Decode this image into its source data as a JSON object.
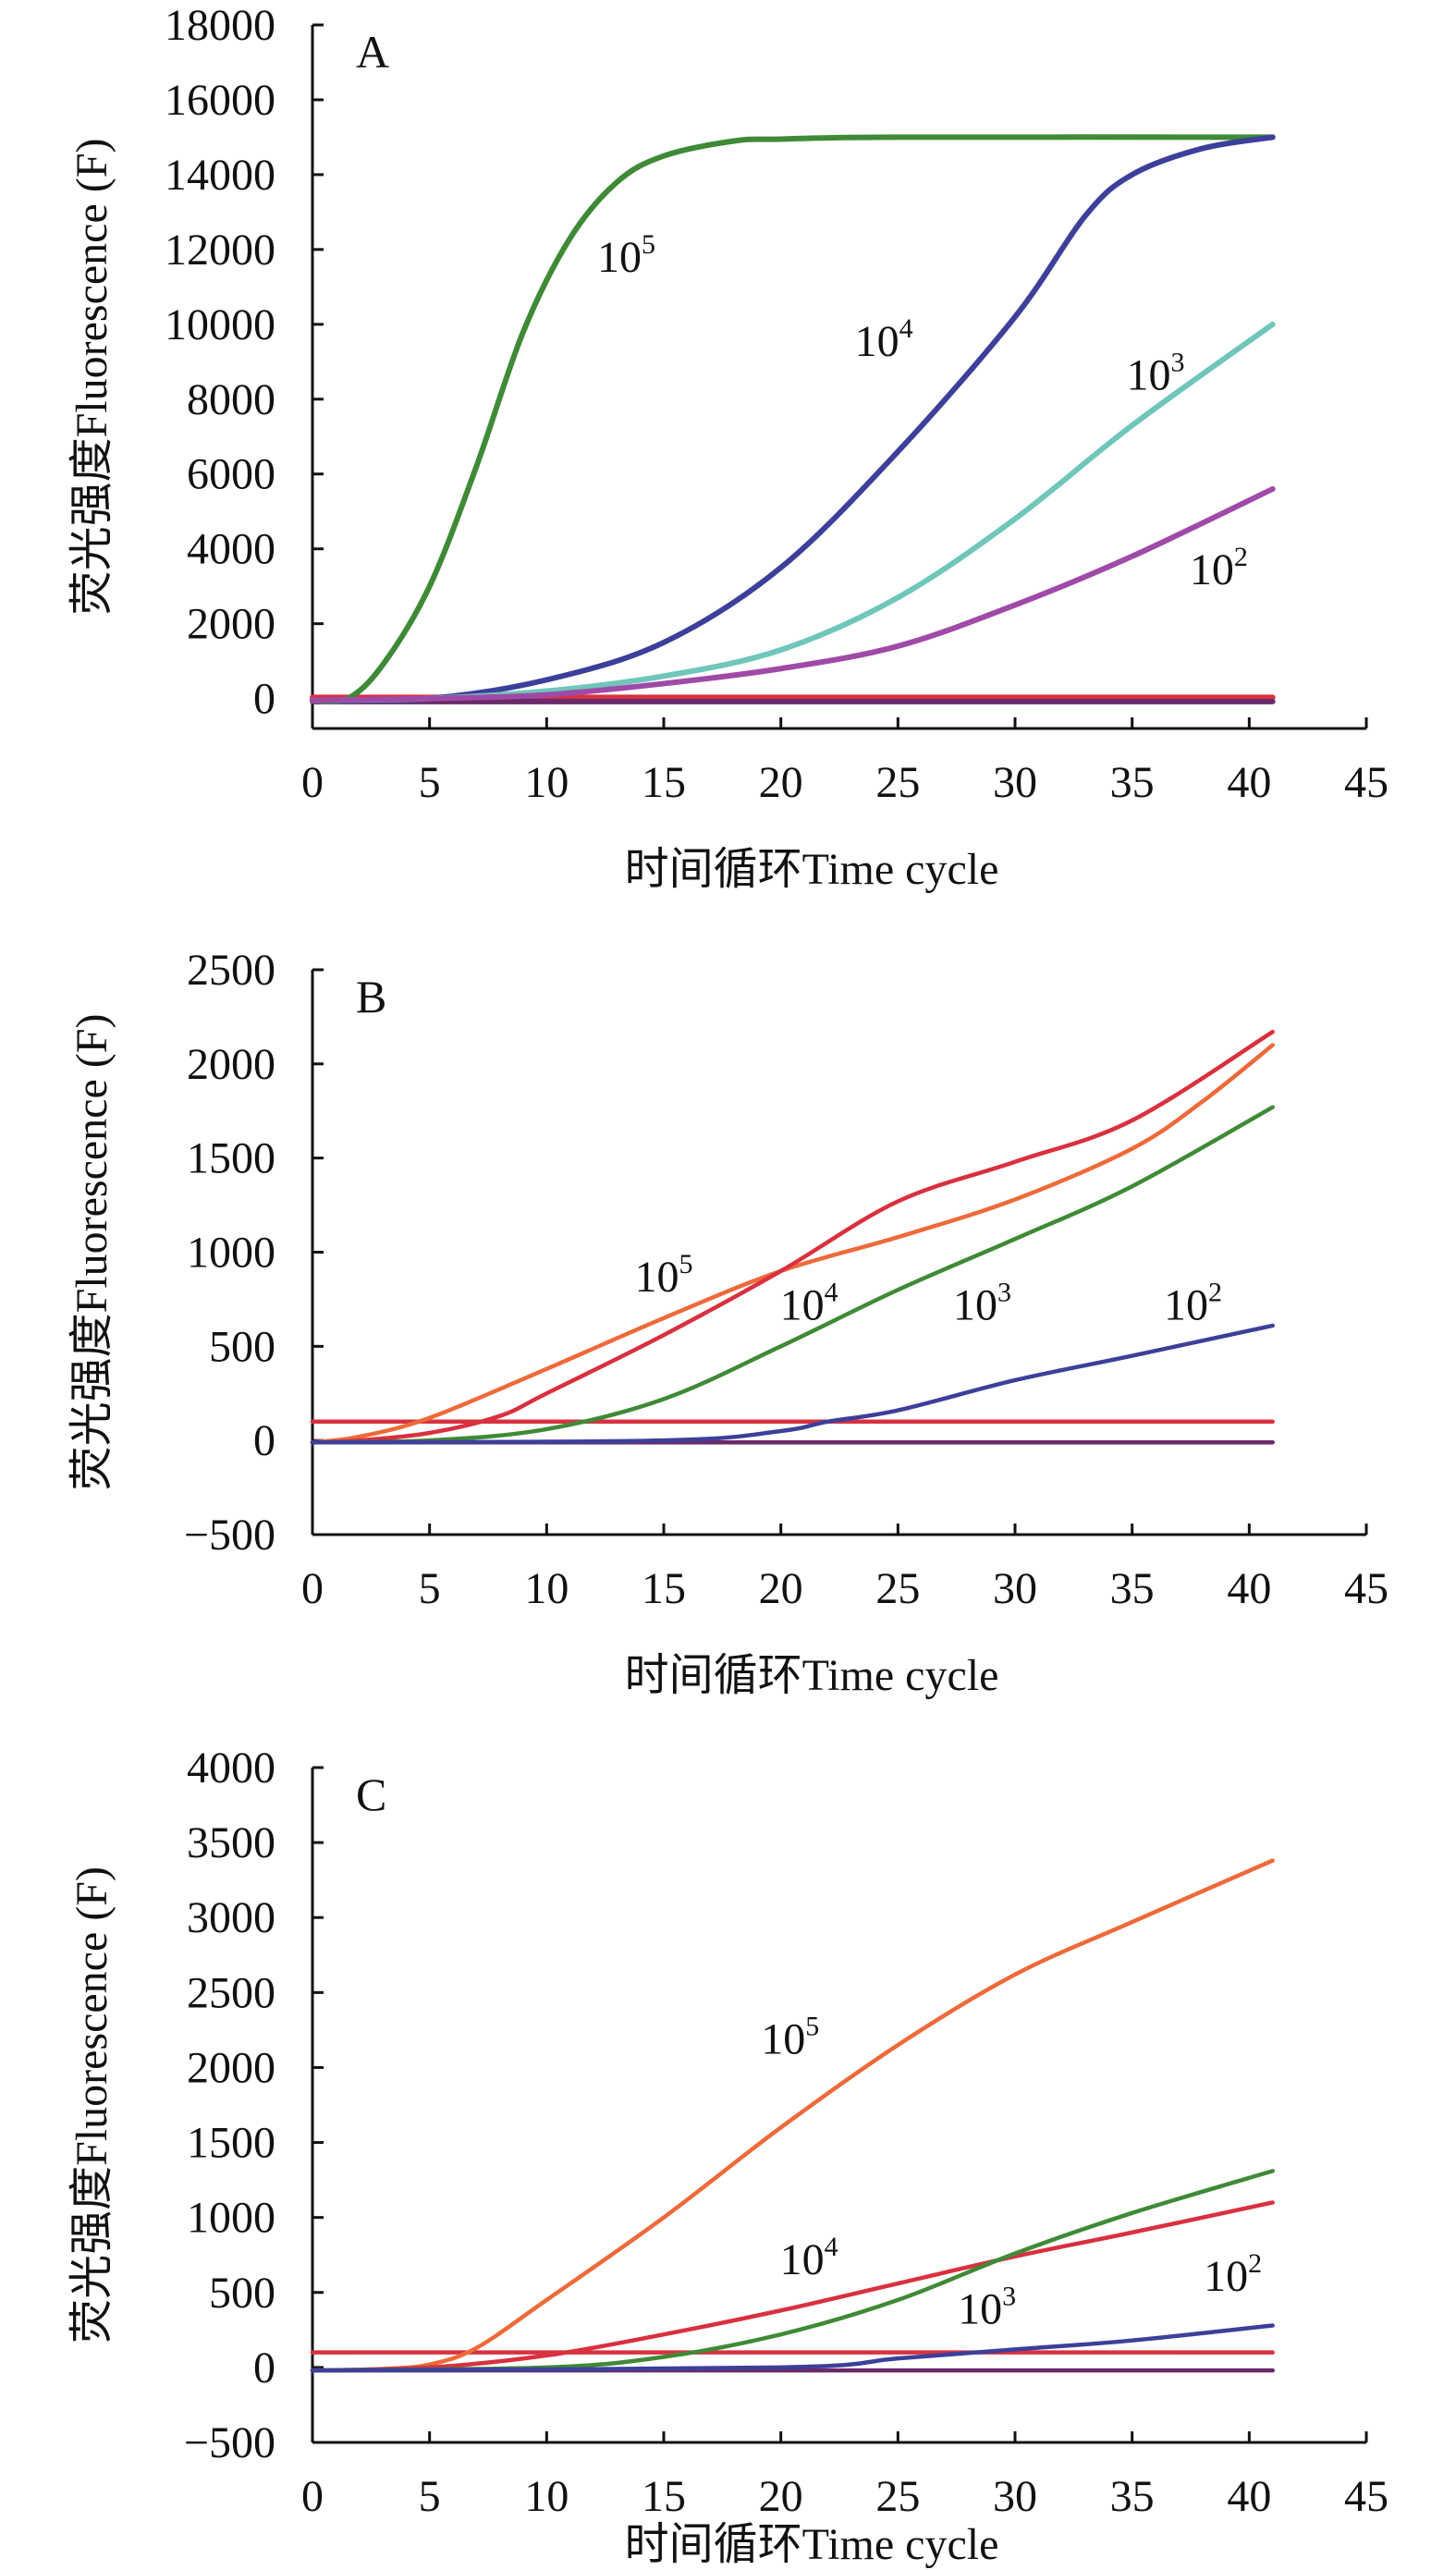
{
  "chart_data": [
    {
      "type": "line",
      "panel_label": "A",
      "xlabel": "时间循环Time cycle",
      "ylabel": "荧光强度Fluorescence (F)",
      "xlim": [
        0,
        45
      ],
      "ylim": [
        -800,
        18000
      ],
      "xticks": [
        0,
        5,
        10,
        15,
        20,
        25,
        30,
        35,
        40,
        45
      ],
      "yticks": [
        0,
        2000,
        4000,
        6000,
        8000,
        10000,
        12000,
        14000,
        16000,
        18000
      ],
      "grid": false,
      "series": [
        {
          "name": "10^5",
          "color": "#3f8a36",
          "x": [
            0,
            1.5,
            3,
            5,
            7,
            9,
            11,
            13,
            15,
            18,
            20,
            25,
            41
          ],
          "y": [
            -50,
            0,
            900,
            3000,
            6200,
            9800,
            12300,
            13800,
            14500,
            14900,
            14950,
            15000,
            15000
          ]
        },
        {
          "name": "10^4",
          "color": "#3c409a",
          "x": [
            0,
            5,
            10,
            15,
            20,
            25,
            30,
            33,
            35,
            38,
            41
          ],
          "y": [
            -50,
            0,
            500,
            1500,
            3500,
            6600,
            10200,
            12900,
            14000,
            14700,
            15000
          ]
        },
        {
          "name": "10^3",
          "color": "#6fc6ba",
          "x": [
            0,
            5,
            10,
            15,
            20,
            25,
            30,
            35,
            41
          ],
          "y": [
            -50,
            0,
            200,
            600,
            1300,
            2700,
            4800,
            7300,
            10000
          ]
        },
        {
          "name": "10^2",
          "color": "#a04aa8",
          "x": [
            0,
            5,
            10,
            15,
            20,
            25,
            30,
            35,
            41
          ],
          "y": [
            -50,
            0,
            100,
            400,
            800,
            1400,
            2500,
            3800,
            5600
          ]
        },
        {
          "color": "#d9303f",
          "x": [
            0,
            41
          ],
          "y": [
            30,
            30
          ]
        },
        {
          "color": "#6a2a6a",
          "x": [
            0,
            41
          ],
          "y": [
            -80,
            -80
          ]
        }
      ],
      "annotations": [
        {
          "base": "10",
          "exp": "5",
          "x": 13.4,
          "y": 11800
        },
        {
          "base": "10",
          "exp": "4",
          "x": 24.4,
          "y": 9550
        },
        {
          "base": "10",
          "exp": "3",
          "x": 36,
          "y": 8650
        },
        {
          "base": "10",
          "exp": "2",
          "x": 38.7,
          "y": 3450
        }
      ]
    },
    {
      "type": "line",
      "panel_label": "B",
      "xlabel": "时间循环Time cycle",
      "ylabel": "荧光强度Fluorescence (F)",
      "xlim": [
        0,
        45
      ],
      "ylim": [
        -500,
        2500
      ],
      "xticks": [
        0,
        5,
        10,
        15,
        20,
        25,
        30,
        35,
        40,
        45
      ],
      "yticks": [
        -500,
        0,
        500,
        1000,
        1500,
        2000,
        2500
      ],
      "grid": false,
      "series": [
        {
          "name": "10^5",
          "color": "#ee6a3a",
          "x": [
            0,
            2,
            5,
            10,
            15,
            20,
            25,
            30,
            35,
            38,
            41
          ],
          "y": [
            -10,
            20,
            120,
            380,
            650,
            900,
            1080,
            1280,
            1550,
            1800,
            2100
          ]
        },
        {
          "name": "10^4",
          "color": "#d9303f",
          "x": [
            0,
            2,
            5,
            8,
            10,
            15,
            20,
            25,
            30,
            35,
            41
          ],
          "y": [
            -10,
            0,
            40,
            130,
            250,
            560,
            900,
            1270,
            1480,
            1700,
            2170
          ]
        },
        {
          "name": "10^3",
          "color": "#3f8a36",
          "x": [
            0,
            5,
            10,
            15,
            20,
            25,
            30,
            35,
            41
          ],
          "y": [
            -10,
            0,
            60,
            220,
            500,
            800,
            1070,
            1350,
            1770
          ]
        },
        {
          "name": "10^2",
          "color": "#3c409a",
          "x": [
            0,
            15,
            20,
            22,
            25,
            30,
            35,
            41
          ],
          "y": [
            -10,
            0,
            50,
            100,
            160,
            320,
            450,
            610
          ]
        },
        {
          "color": "#d9303f",
          "x": [
            0,
            41
          ],
          "y": [
            100,
            100
          ]
        },
        {
          "color": "#6a2a6a",
          "x": [
            0,
            41
          ],
          "y": [
            -10,
            -10
          ]
        }
      ],
      "annotations": [
        {
          "base": "10",
          "exp": "5",
          "x": 15,
          "y": 870
        },
        {
          "base": "10",
          "exp": "4",
          "x": 21.2,
          "y": 720
        },
        {
          "base": "10",
          "exp": "3",
          "x": 28.6,
          "y": 720
        },
        {
          "base": "10",
          "exp": "2",
          "x": 37.6,
          "y": 720
        }
      ]
    },
    {
      "type": "line",
      "panel_label": "C",
      "xlabel": "时间循环Time cycle",
      "ylabel": "荧光强度Fluorescence (F)",
      "xlim": [
        0,
        45
      ],
      "ylim": [
        -500,
        4000
      ],
      "xticks": [
        0,
        5,
        10,
        15,
        20,
        25,
        30,
        35,
        40,
        45
      ],
      "yticks": [
        -500,
        0,
        500,
        1000,
        1500,
        2000,
        2500,
        3000,
        3500,
        4000
      ],
      "grid": false,
      "series": [
        {
          "name": "10^5",
          "color": "#ee6a3a",
          "x": [
            0,
            3,
            5,
            7,
            10,
            15,
            20,
            25,
            30,
            35,
            41
          ],
          "y": [
            -20,
            -10,
            20,
            130,
            450,
            1000,
            1600,
            2150,
            2620,
            2970,
            3380
          ]
        },
        {
          "name": "10^4",
          "color": "#d9303f",
          "x": [
            0,
            5,
            10,
            15,
            20,
            25,
            30,
            35,
            41
          ],
          "y": [
            -20,
            0,
            80,
            220,
            380,
            560,
            740,
            900,
            1100
          ]
        },
        {
          "name": "10^3",
          "color": "#3f8a36",
          "x": [
            0,
            10,
            15,
            20,
            25,
            30,
            35,
            41
          ],
          "y": [
            -20,
            0,
            70,
            220,
            450,
            760,
            1030,
            1310
          ]
        },
        {
          "name": "10^2",
          "color": "#3c409a",
          "x": [
            0,
            20,
            25,
            30,
            35,
            41
          ],
          "y": [
            -20,
            0,
            60,
            120,
            180,
            280
          ]
        },
        {
          "color": "#d9303f",
          "x": [
            0,
            41
          ],
          "y": [
            100,
            100
          ]
        },
        {
          "color": "#6a2a6a",
          "x": [
            0,
            41
          ],
          "y": [
            -20,
            -20
          ]
        }
      ],
      "annotations": [
        {
          "base": "10",
          "exp": "5",
          "x": 20.4,
          "y": 2190
        },
        {
          "base": "10",
          "exp": "4",
          "x": 21.2,
          "y": 720
        },
        {
          "base": "10",
          "exp": "3",
          "x": 28.8,
          "y": 390
        },
        {
          "base": "10",
          "exp": "2",
          "x": 39.3,
          "y": 610
        }
      ]
    }
  ]
}
